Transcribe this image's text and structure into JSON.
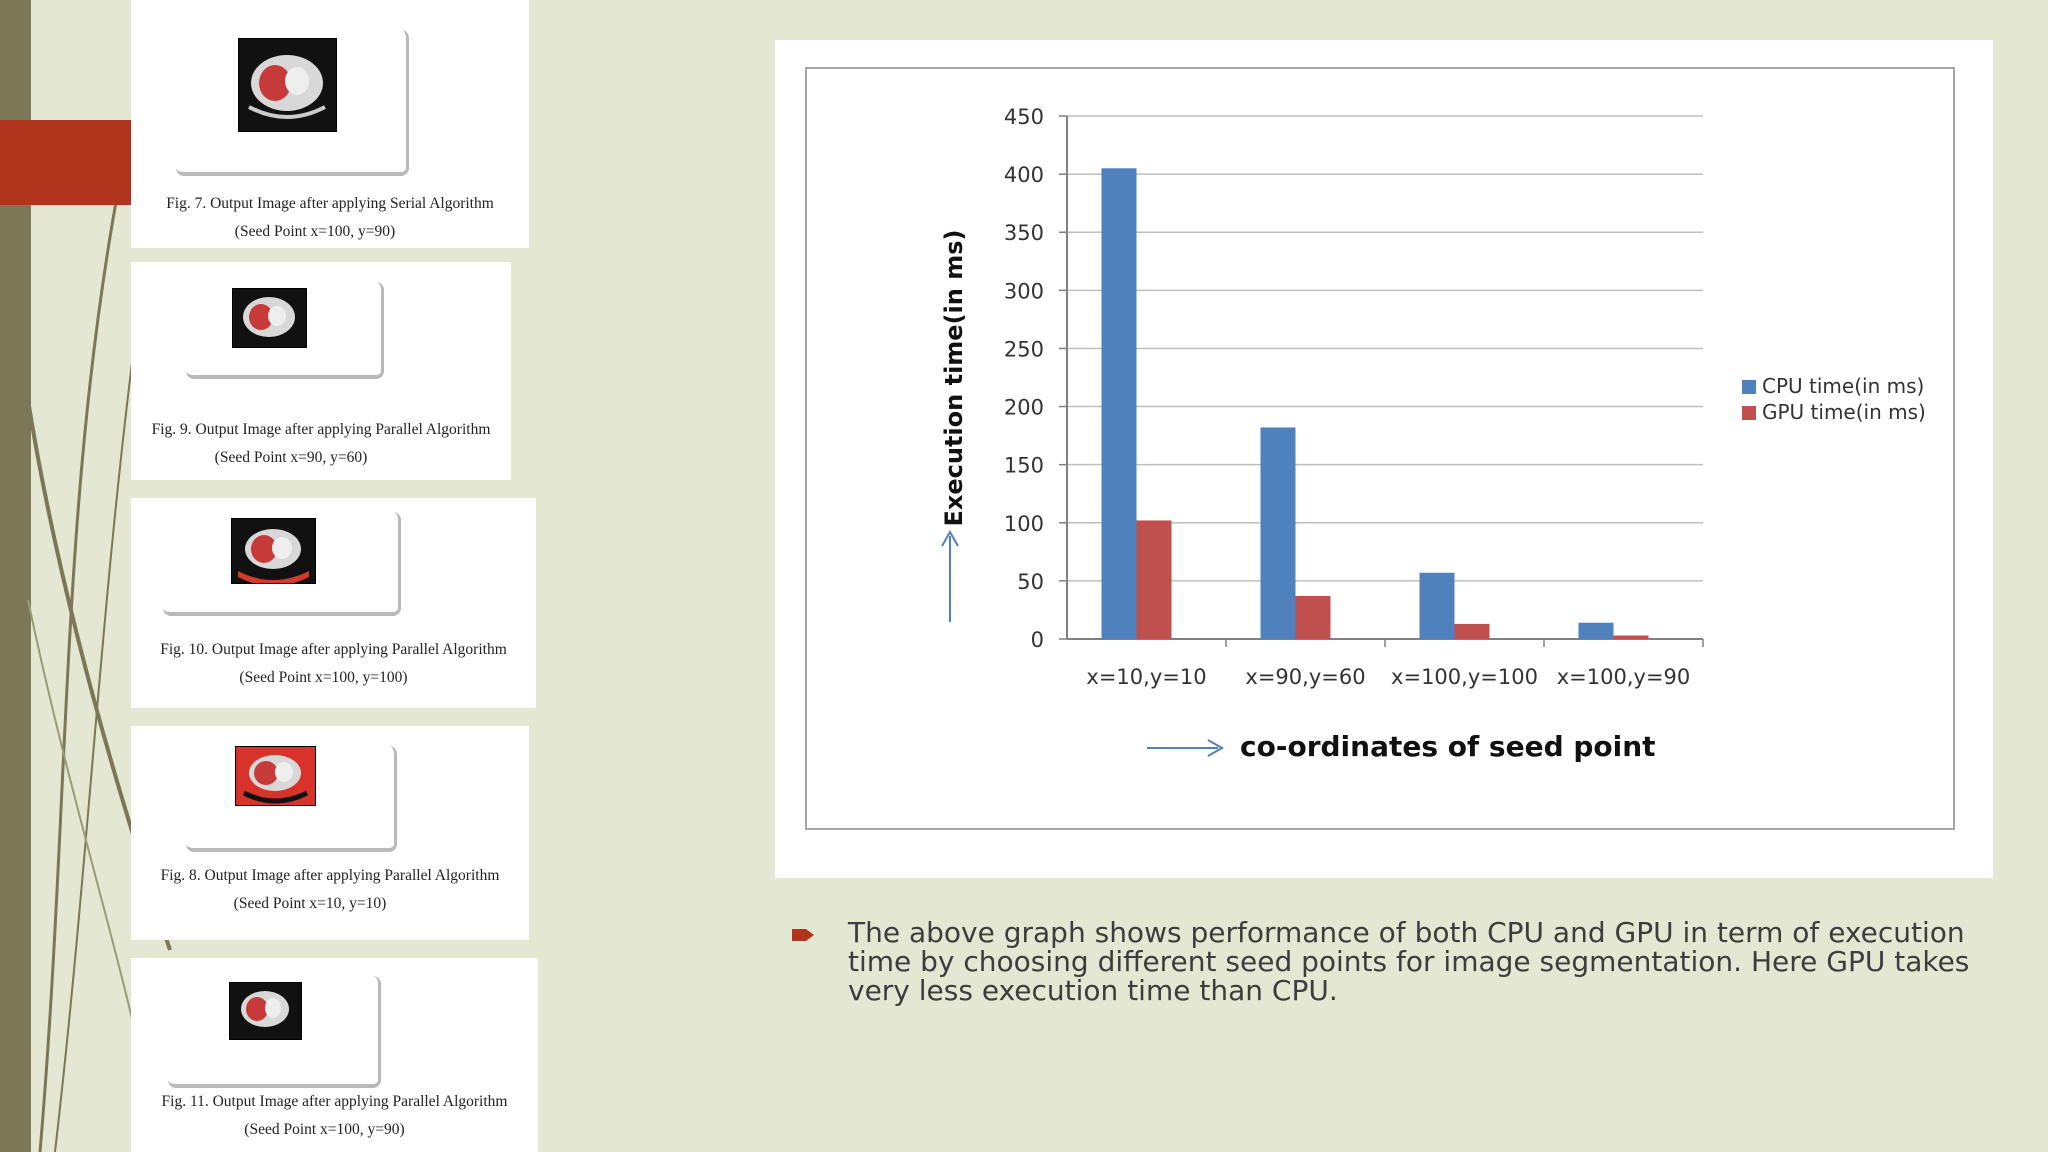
{
  "figures": [
    {
      "caption_line1": "Fig. 7. Output Image after applying Serial Algorithm",
      "caption_line2": "(Seed Point x=100, y=90)"
    },
    {
      "caption_line1": "Fig. 9. Output Image after applying Parallel Algorithm",
      "caption_line2": "(Seed Point x=90, y=60)"
    },
    {
      "caption_line1": "Fig. 10. Output Image after applying Parallel Algorithm",
      "caption_line2": "(Seed Point x=100, y=100)"
    },
    {
      "caption_line1": "Fig. 8. Output Image after applying Parallel Algorithm",
      "caption_line2": "(Seed Point x=10, y=10)"
    },
    {
      "caption_line1": "Fig. 11. Output Image after applying Parallel Algorithm",
      "caption_line2": "(Seed Point x=100, y=90)"
    }
  ],
  "chart_data": {
    "type": "bar",
    "categories": [
      "x=10,y=10",
      "x=90,y=60",
      "x=100,y=100",
      "x=100,y=90"
    ],
    "series": [
      {
        "name": "CPU time(in ms)",
        "values": [
          405,
          182,
          57,
          14
        ],
        "color": "#4f81bd"
      },
      {
        "name": "GPU time(in ms)",
        "values": [
          102,
          37,
          13,
          3
        ],
        "color": "#c0504d"
      }
    ],
    "xlabel": "co-ordinates of seed point",
    "ylabel": "Execution time(in ms)",
    "ylim": [
      0,
      450
    ],
    "yticks": [
      "0",
      "50",
      "100",
      "150",
      "200",
      "250",
      "300",
      "350",
      "400",
      "450"
    ],
    "grid": true,
    "legend_position": "right"
  },
  "bullet": {
    "text": "The above graph shows performance of both CPU and GPU in term of execution time by choosing different seed points for image segmentation. Here GPU takes very less execution time than CPU.",
    "color": "#b1341c"
  }
}
